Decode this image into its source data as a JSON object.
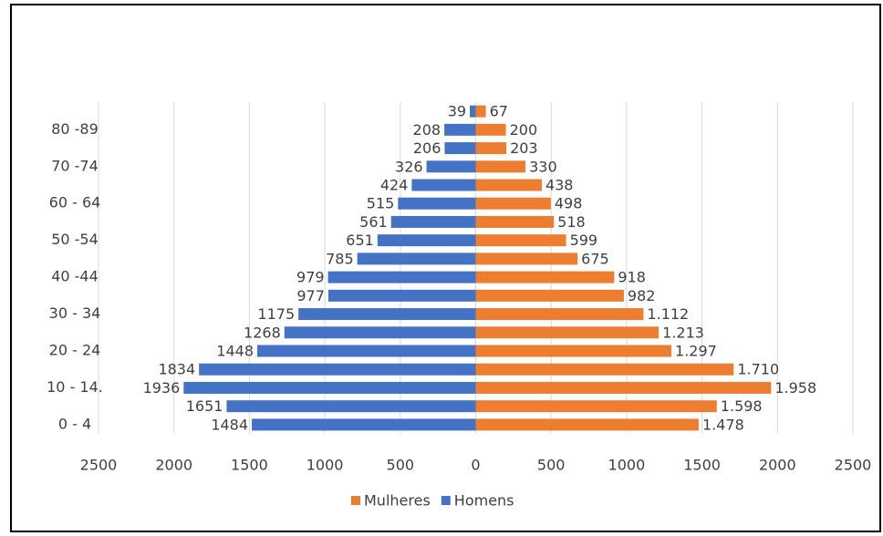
{
  "chart_data": {
    "type": "pyramid",
    "categories": [
      "0 - 4",
      null,
      "10 - 14.",
      null,
      "20 - 24",
      null,
      "30 - 34",
      null,
      "40 -44",
      null,
      "50 -54",
      null,
      "60 - 64",
      null,
      "70 -74",
      null,
      "80 -89",
      null
    ],
    "series": [
      {
        "name": "Mulheres",
        "color": "#ed7d31",
        "values": [
          1478,
          1598,
          1958,
          1710,
          1297,
          1213,
          1112,
          982,
          918,
          675,
          599,
          518,
          498,
          438,
          330,
          203,
          200,
          67
        ],
        "value_labels": [
          "1.478",
          "1.598",
          "1.958",
          "1.710",
          "1.297",
          "1.213",
          "1.112",
          "982",
          "918",
          "675",
          "599",
          "518",
          "498",
          "438",
          "330",
          "203",
          "200",
          "67"
        ]
      },
      {
        "name": "Homens",
        "color": "#4472c4",
        "values": [
          1484,
          1651,
          1936,
          1834,
          1448,
          1268,
          1175,
          977,
          979,
          785,
          651,
          561,
          515,
          424,
          326,
          206,
          208,
          39
        ]
      }
    ],
    "xlim": [
      -2500,
      2500
    ],
    "xticks": [
      {
        "value": -2500,
        "label": "2500"
      },
      {
        "value": -2000,
        "label": "2000"
      },
      {
        "value": -1500,
        "label": "1500"
      },
      {
        "value": -1000,
        "label": "1000"
      },
      {
        "value": -500,
        "label": "500"
      },
      0,
      500,
      1000,
      1500,
      2000,
      2500
    ],
    "grid": true,
    "legend": "bottom"
  }
}
